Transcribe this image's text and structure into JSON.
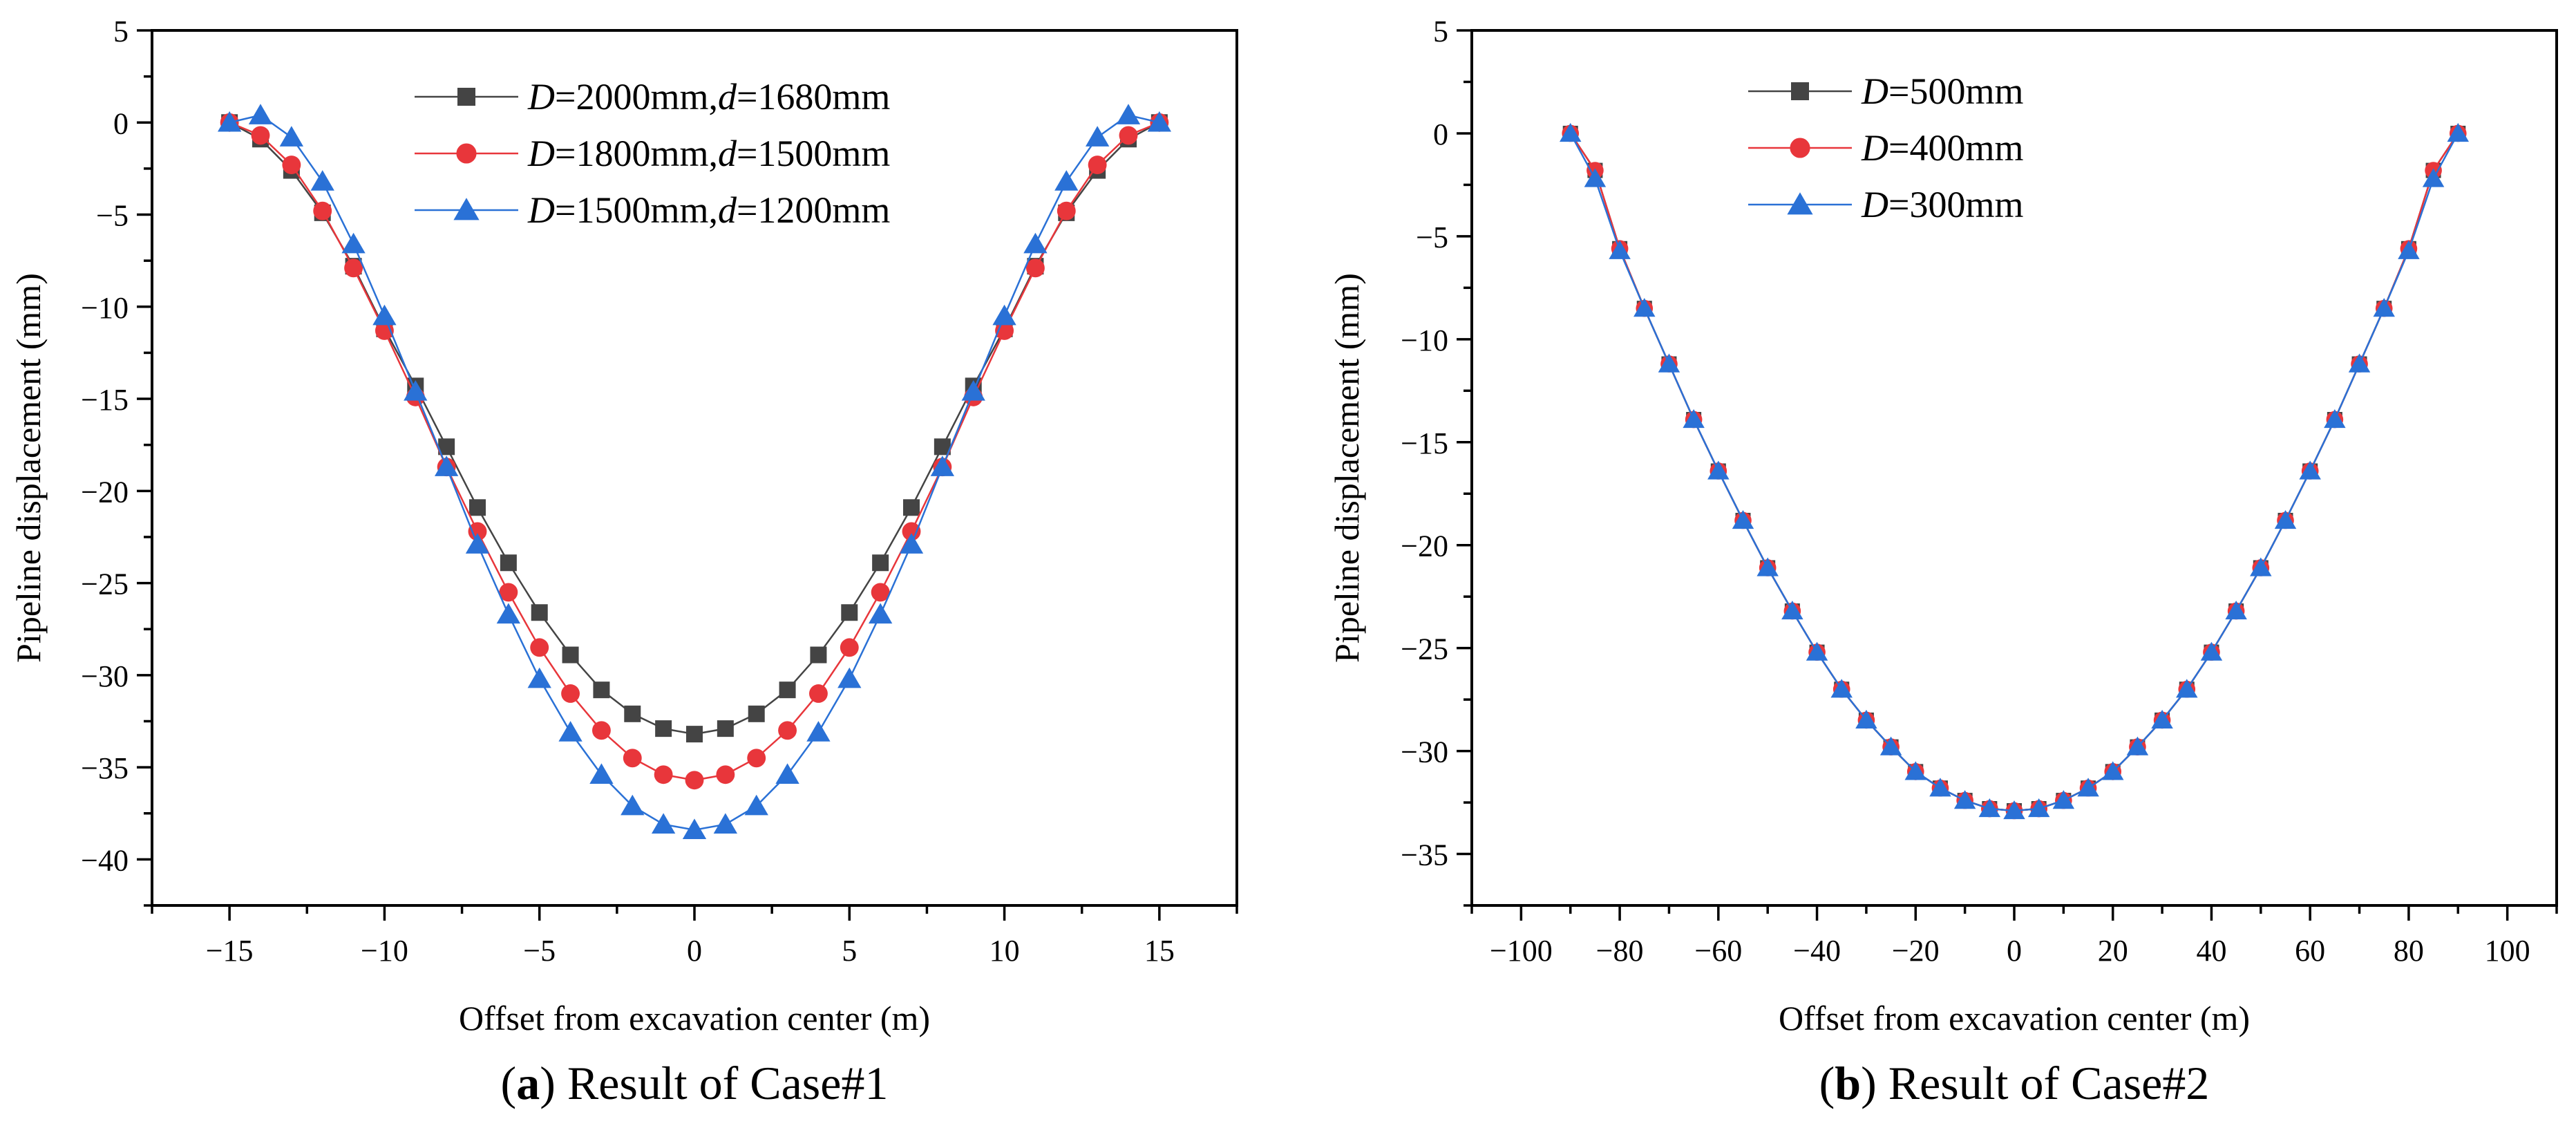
{
  "colors": {
    "series1": "#444444",
    "series2": "#e8363b",
    "series3": "#2a71d6"
  },
  "chart_data": [
    {
      "type": "line",
      "caption_letter": "a",
      "caption_text": " Result of Case#1",
      "xlabel": "Offset from excavation center (m)",
      "ylabel": "Pipeline displacement (mm)",
      "xlim": [
        -17.5,
        17.5
      ],
      "ylim": [
        -42.5,
        5
      ],
      "xticks": [
        -15,
        -10,
        -5,
        0,
        5,
        10,
        15
      ],
      "xtick_labels": [
        "−15",
        "−10",
        "−5",
        "0",
        "5",
        "10",
        "15"
      ],
      "yticks": [
        5,
        0,
        -5,
        -10,
        -15,
        -20,
        -25,
        -30,
        -35,
        -40
      ],
      "ytick_labels": [
        "5",
        "0",
        "−5",
        "−10",
        "−15",
        "−20",
        "−25",
        "−30",
        "−35",
        "−40"
      ],
      "legend_position": "top-center",
      "series": [
        {
          "name": "D=2000mm,d=1680mm",
          "legend_parts": [
            "D",
            "=2000mm,",
            "d",
            "=1680mm"
          ],
          "marker": "square",
          "color_key": "series1",
          "x": [
            -15,
            -14,
            -13,
            -12,
            -11,
            -10,
            -9,
            -8,
            -7,
            -6,
            -5,
            -4,
            -3,
            -2,
            -1,
            0,
            1,
            2,
            3,
            4,
            5,
            6,
            7,
            8,
            9,
            10,
            11,
            12,
            13,
            14,
            15
          ],
          "y": [
            0,
            -0.9,
            -2.6,
            -4.9,
            -7.8,
            -11.2,
            -14.3,
            -17.6,
            -20.9,
            -23.9,
            -26.6,
            -28.9,
            -30.8,
            -32.1,
            -32.9,
            -33.2,
            -32.9,
            -32.1,
            -30.8,
            -28.9,
            -26.6,
            -23.9,
            -20.9,
            -17.6,
            -14.3,
            -11.2,
            -7.8,
            -4.9,
            -2.6,
            -0.9,
            0
          ]
        },
        {
          "name": "D=1800mm,d=1500mm",
          "legend_parts": [
            "D",
            "=1800mm,",
            "d",
            "=1500mm"
          ],
          "marker": "circle",
          "color_key": "series2",
          "x": [
            -15,
            -14,
            -13,
            -12,
            -11,
            -10,
            -9,
            -8,
            -7,
            -6,
            -5,
            -4,
            -3,
            -2,
            -1,
            0,
            1,
            2,
            3,
            4,
            5,
            6,
            7,
            8,
            9,
            10,
            11,
            12,
            13,
            14,
            15
          ],
          "y": [
            0,
            -0.7,
            -2.3,
            -4.8,
            -7.9,
            -11.3,
            -14.9,
            -18.7,
            -22.2,
            -25.5,
            -28.5,
            -31.0,
            -33.0,
            -34.5,
            -35.4,
            -35.7,
            -35.4,
            -34.5,
            -33.0,
            -31.0,
            -28.5,
            -25.5,
            -22.2,
            -18.7,
            -14.9,
            -11.3,
            -7.9,
            -4.8,
            -2.3,
            -0.7,
            0
          ]
        },
        {
          "name": "D=1500mm,d=1200mm",
          "legend_parts": [
            "D",
            "=1500mm,",
            "d",
            "=1200mm"
          ],
          "marker": "triangle",
          "color_key": "series3",
          "x": [
            -15,
            -14,
            -13,
            -12,
            -11,
            -10,
            -9,
            -8,
            -7,
            -6,
            -5,
            -4,
            -3,
            -2,
            -1,
            0,
            1,
            2,
            3,
            4,
            5,
            6,
            7,
            8,
            9,
            10,
            11,
            12,
            13,
            14,
            15
          ],
          "y": [
            0,
            0.4,
            -0.8,
            -3.2,
            -6.6,
            -10.5,
            -14.6,
            -18.7,
            -22.9,
            -26.7,
            -30.2,
            -33.1,
            -35.4,
            -37.1,
            -38.1,
            -38.4,
            -38.1,
            -37.1,
            -35.4,
            -33.1,
            -30.2,
            -26.7,
            -22.9,
            -18.7,
            -14.6,
            -10.5,
            -6.6,
            -3.2,
            -0.8,
            0.4,
            0
          ]
        }
      ]
    },
    {
      "type": "line",
      "caption_letter": "b",
      "caption_text": " Result of Case#2",
      "xlabel": "Offset from excavation center (m)",
      "ylabel": "Pipeline displacement (mm)",
      "xlim": [
        -110,
        110
      ],
      "ylim": [
        -37.5,
        5
      ],
      "xticks": [
        -100,
        -80,
        -60,
        -40,
        -20,
        0,
        20,
        40,
        60,
        80,
        100
      ],
      "xtick_labels": [
        "−100",
        "−80",
        "−60",
        "−40",
        "−20",
        "0",
        "20",
        "40",
        "60",
        "80",
        "100"
      ],
      "yticks": [
        5,
        0,
        -5,
        -10,
        -15,
        -20,
        -25,
        -30,
        -35
      ],
      "ytick_labels": [
        "5",
        "0",
        "−5",
        "−10",
        "−15",
        "−20",
        "−25",
        "−30",
        "−35"
      ],
      "legend_position": "top-left",
      "series": [
        {
          "name": "D=500mm",
          "legend_parts": [
            "D",
            "=500mm"
          ],
          "marker": "square",
          "color_key": "series1",
          "x": [
            -90,
            -85,
            -80,
            -75,
            -70,
            -65,
            -60,
            -55,
            -50,
            -45,
            -40,
            -35,
            -30,
            -25,
            -20,
            -15,
            -10,
            -5,
            0,
            5,
            10,
            15,
            20,
            25,
            30,
            35,
            40,
            45,
            50,
            55,
            60,
            65,
            70,
            75,
            80,
            85,
            90
          ],
          "y": [
            0,
            -1.8,
            -5.6,
            -8.5,
            -11.2,
            -13.9,
            -16.4,
            -18.8,
            -21.1,
            -23.2,
            -25.2,
            -27.0,
            -28.5,
            -29.8,
            -31.0,
            -31.8,
            -32.4,
            -32.8,
            -32.9,
            -32.8,
            -32.4,
            -31.8,
            -31.0,
            -29.8,
            -28.5,
            -27.0,
            -25.2,
            -23.2,
            -21.1,
            -18.8,
            -16.4,
            -13.9,
            -11.2,
            -8.5,
            -5.6,
            -1.8,
            0
          ]
        },
        {
          "name": "D=400mm",
          "legend_parts": [
            "D",
            "=400mm"
          ],
          "marker": "circle",
          "color_key": "series2",
          "x": [
            -90,
            -85,
            -80,
            -75,
            -70,
            -65,
            -60,
            -55,
            -50,
            -45,
            -40,
            -35,
            -30,
            -25,
            -20,
            -15,
            -10,
            -5,
            0,
            5,
            10,
            15,
            20,
            25,
            30,
            35,
            40,
            45,
            50,
            55,
            60,
            65,
            70,
            75,
            80,
            85,
            90
          ],
          "y": [
            0,
            -1.8,
            -5.6,
            -8.5,
            -11.2,
            -13.9,
            -16.4,
            -18.8,
            -21.1,
            -23.2,
            -25.2,
            -27.0,
            -28.5,
            -29.8,
            -31.0,
            -31.8,
            -32.4,
            -32.8,
            -32.9,
            -32.8,
            -32.4,
            -31.8,
            -31.0,
            -29.8,
            -28.5,
            -27.0,
            -25.2,
            -23.2,
            -21.1,
            -18.8,
            -16.4,
            -13.9,
            -11.2,
            -8.5,
            -5.6,
            -1.8,
            0
          ]
        },
        {
          "name": "D=300mm",
          "legend_parts": [
            "D",
            "=300mm"
          ],
          "marker": "triangle",
          "color_key": "series3",
          "x": [
            -90,
            -85,
            -80,
            -75,
            -70,
            -65,
            -60,
            -55,
            -50,
            -45,
            -40,
            -35,
            -30,
            -25,
            -20,
            -15,
            -10,
            -5,
            0,
            5,
            10,
            15,
            20,
            25,
            30,
            35,
            40,
            45,
            50,
            55,
            60,
            65,
            70,
            75,
            80,
            85,
            90
          ],
          "y": [
            0,
            -2.2,
            -5.7,
            -8.5,
            -11.2,
            -13.9,
            -16.4,
            -18.8,
            -21.1,
            -23.2,
            -25.2,
            -27.0,
            -28.5,
            -29.8,
            -31.0,
            -31.8,
            -32.4,
            -32.8,
            -32.9,
            -32.8,
            -32.4,
            -31.8,
            -31.0,
            -29.8,
            -28.5,
            -27.0,
            -25.2,
            -23.2,
            -21.1,
            -18.8,
            -16.4,
            -13.9,
            -11.2,
            -8.5,
            -5.7,
            -2.2,
            0
          ]
        }
      ]
    }
  ]
}
